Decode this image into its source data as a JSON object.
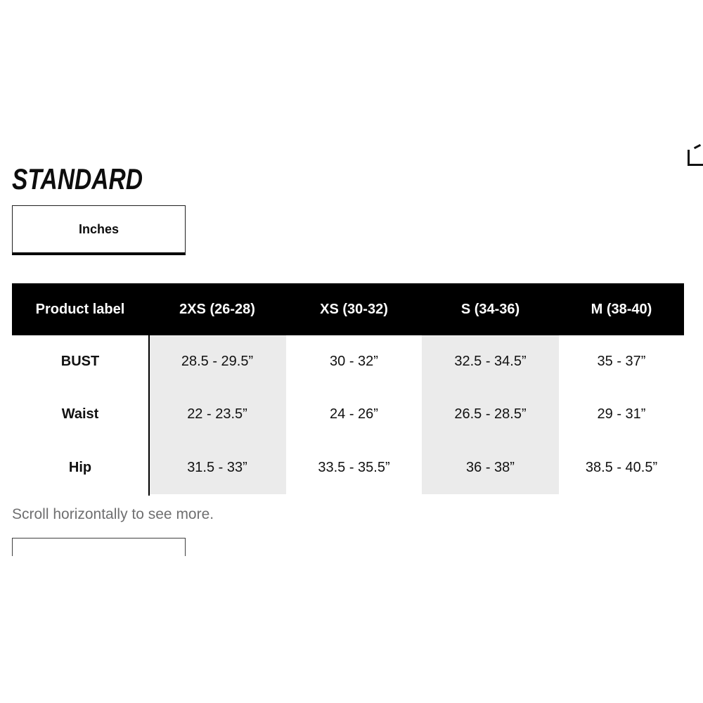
{
  "page": {
    "title": "STANDARD",
    "scroll_hint": "Scroll horizontally to see more."
  },
  "unit_tab": {
    "label": "Inches",
    "selected": true
  },
  "icons": {
    "corner_fragment": "partial corner bracket glyph cut off at right edge"
  },
  "colors": {
    "header_bg": "#000000",
    "header_text": "#ffffff",
    "shaded_column_bg": "#ebebeb",
    "body_text": "#111111",
    "hint_text": "#6f6f70",
    "divider": "#000000"
  },
  "chart_data": {
    "type": "table",
    "title": "STANDARD",
    "unit": "Inches",
    "columns": [
      "Product label",
      "2XS (26-28)",
      "XS (30-32)",
      "S (34-36)",
      "M (38-40)"
    ],
    "shaded_columns": [
      "2XS (26-28)",
      "S (34-36)"
    ],
    "rows": [
      {
        "label": "BUST",
        "values": [
          "28.5 - 29.5”",
          "30 - 32”",
          "32.5 - 34.5”",
          "35 - 37”"
        ]
      },
      {
        "label": "Waist",
        "values": [
          "22 - 23.5”",
          "24 - 26”",
          "26.5 - 28.5”",
          "29 - 31”"
        ]
      },
      {
        "label": "Hip",
        "values": [
          "31.5 - 33”",
          "33.5 - 35.5”",
          "36 - 38”",
          "38.5 - 40.5”"
        ]
      }
    ]
  }
}
